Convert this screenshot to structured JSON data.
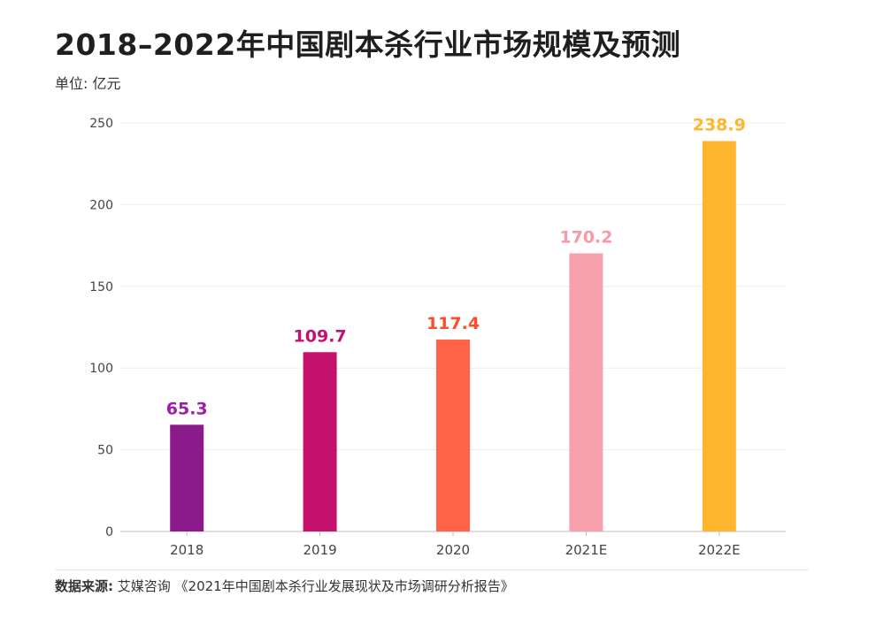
{
  "title": "2018–2022年中国剧本杀行业市场规模及预测",
  "unit_label": "单位: 亿元",
  "source": {
    "label": "数据来源:",
    "text": "艾媒咨询 《2021年中国剧本杀行业发展现状及市场调研分析报告》"
  },
  "chart_data": {
    "type": "bar",
    "title": "2018–2022年中国剧本杀行业市场规模及预测",
    "xlabel": "",
    "ylabel": "单位: 亿元",
    "ylim": [
      0,
      250
    ],
    "yticks": [
      0,
      50,
      100,
      150,
      200,
      250
    ],
    "categories": [
      "2018",
      "2019",
      "2020",
      "2021E",
      "2022E"
    ],
    "values": [
      65.3,
      109.7,
      117.4,
      170.2,
      238.9
    ],
    "value_labels": [
      "65.3",
      "109.7",
      "117.4",
      "170.2",
      "238.9"
    ],
    "colors": [
      "#8b1a8b",
      "#c4116e",
      "#ff6347",
      "#f7a1ad",
      "#ffb52e"
    ],
    "label_colors": [
      "#a01ba8",
      "#c4116e",
      "#ff4b2b",
      "#f89aa6",
      "#ffb52e"
    ],
    "grid": true,
    "axis_color": "#bdbdbd",
    "grid_color": "#eeeeee"
  }
}
